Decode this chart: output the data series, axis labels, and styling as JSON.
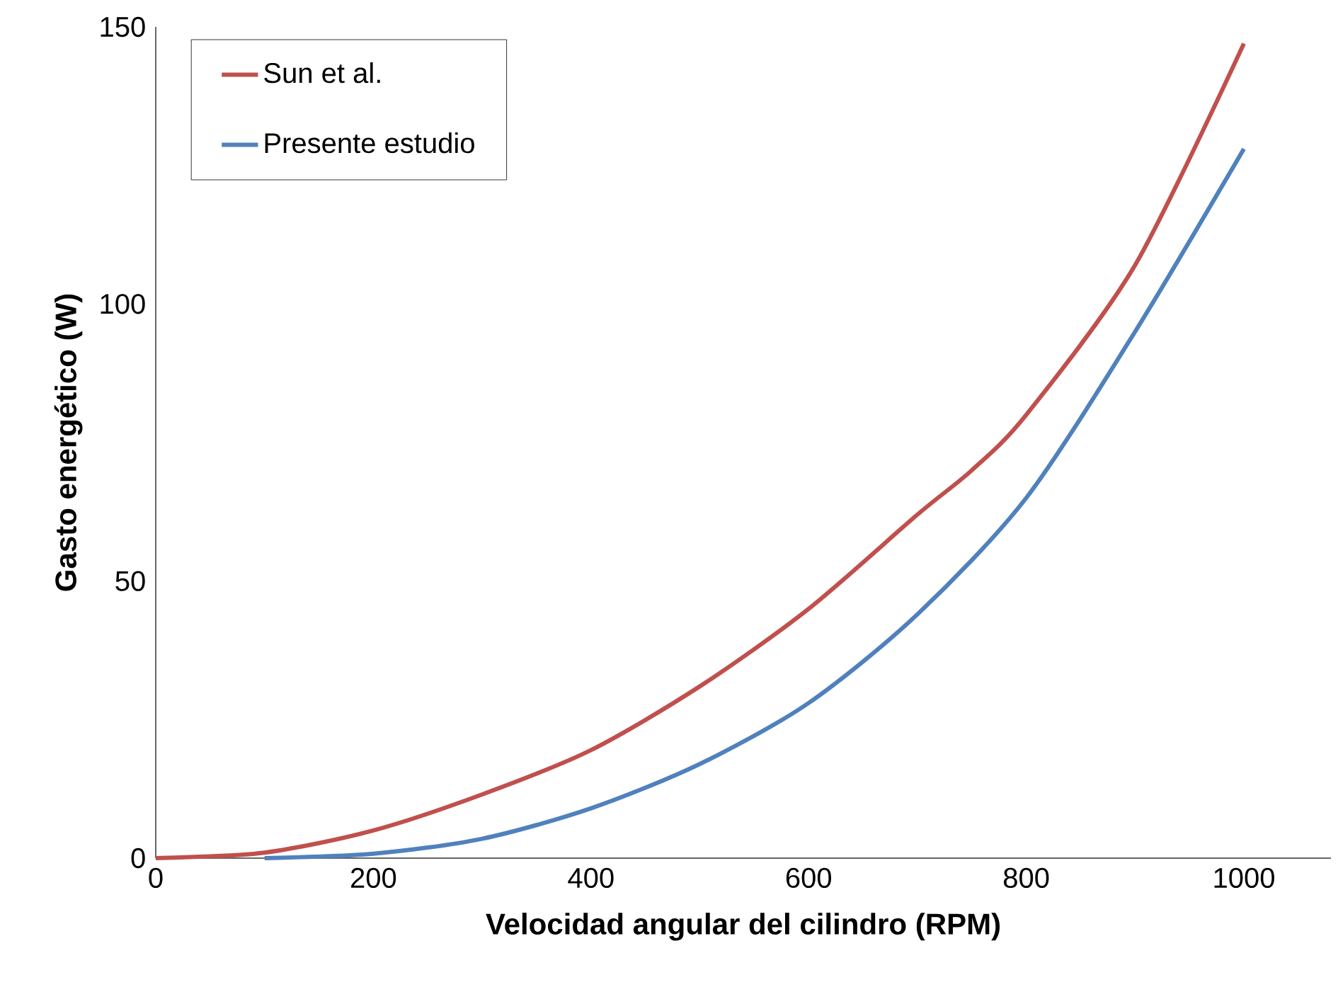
{
  "chart_data": {
    "type": "line",
    "xlabel": "Velocidad angular del cilindro (RPM)",
    "ylabel": "Gasto energético (W)",
    "xlim": [
      0,
      1080
    ],
    "ylim": [
      0,
      150
    ],
    "xticks": [
      0,
      200,
      400,
      600,
      800,
      1000
    ],
    "yticks": [
      0,
      50,
      100,
      150
    ],
    "grid": false,
    "legend": "top left",
    "marker": "none",
    "line_style": "solid",
    "series": [
      {
        "name": "Sun et al.",
        "color": "#c0504d",
        "x": [
          0,
          100,
          200,
          300,
          400,
          500,
          600,
          700,
          750,
          800,
          900,
          1000
        ],
        "values": [
          0,
          1,
          5,
          11.5,
          19.5,
          31,
          45,
          62,
          70,
          80,
          107,
          147
        ]
      },
      {
        "name": "Presente estudio",
        "color": "#4f81bd",
        "x": [
          100,
          200,
          300,
          400,
          500,
          600,
          700,
          800,
          900,
          1000
        ],
        "values": [
          0,
          0.8,
          3.5,
          9,
          17,
          28,
          44,
          65,
          95,
          128
        ]
      }
    ]
  }
}
